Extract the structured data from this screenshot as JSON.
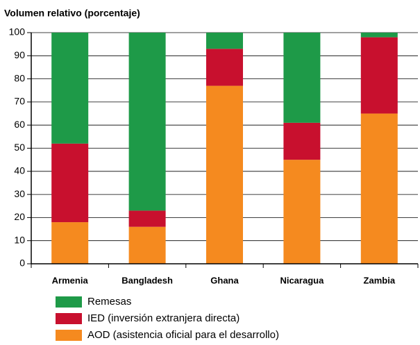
{
  "chart_data": {
    "type": "stacked_bar",
    "title": "Volumen relativo (porcentaje)",
    "categories": [
      "Armenia",
      "Bangladesh",
      "Ghana",
      "Nicaragua",
      "Zambia"
    ],
    "series": [
      {
        "name": "AOD (asistencia oficial para el desarrollo)",
        "color": "#f58a1f",
        "values": [
          18,
          16,
          77,
          45,
          65
        ]
      },
      {
        "name": "IED (inversión extranjera directa)",
        "color": "#c8102e",
        "values": [
          34,
          7,
          16,
          16,
          33
        ]
      },
      {
        "name": "Remesas",
        "color": "#1e9a48",
        "values": [
          48,
          77,
          7,
          39,
          2
        ]
      }
    ],
    "ylim": [
      0,
      100
    ],
    "yticks": [
      0,
      10,
      20,
      30,
      40,
      50,
      60,
      70,
      80,
      90,
      100
    ],
    "grid": true
  }
}
